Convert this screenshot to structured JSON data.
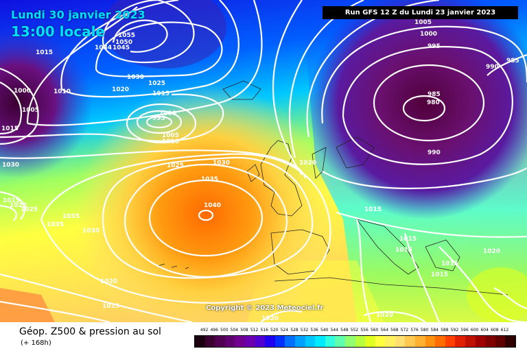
{
  "header": {
    "date_line": "Lundi 30 janvier 2023",
    "time_line": "13:00 locale",
    "run_info": "Run GFS 12 Z du Lundi 23 janvier 2023"
  },
  "copyright": "Copyright © 2023 Meteociel.fr",
  "footer": {
    "title": "Géop. Z500 & pression au sol",
    "subtitle": "(+ 168h)"
  },
  "legend": {
    "labels": [
      "492",
      "496",
      "500",
      "504",
      "508",
      "512",
      "516",
      "520",
      "524",
      "528",
      "532",
      "536",
      "540",
      "544",
      "548",
      "552",
      "556",
      "560",
      "564",
      "568",
      "572",
      "576",
      "580",
      "584",
      "588",
      "592",
      "596",
      "600",
      "604",
      "608",
      "612"
    ],
    "colors": [
      "#1a0010",
      "#3a0030",
      "#500050",
      "#600070",
      "#700090",
      "#6a00b0",
      "#5000d0",
      "#2000f0",
      "#0030ff",
      "#0070ff",
      "#00a0ff",
      "#00c8ff",
      "#00eaff",
      "#30ffe0",
      "#60ffb0",
      "#90ff70",
      "#b8ff40",
      "#e0ff20",
      "#ffff40",
      "#fff060",
      "#ffe070",
      "#ffc850",
      "#ffb030",
      "#ff9010",
      "#ff6c00",
      "#ff4000",
      "#e02000",
      "#c01000",
      "#a00000",
      "#800000",
      "#600000",
      "#300000"
    ]
  },
  "isobars": {
    "labels": [
      "1055",
      "1050",
      "1045",
      "1034",
      "1015",
      "1030",
      "1025",
      "1020",
      "1015",
      "1010",
      "1000",
      "1005",
      "1015",
      "1030",
      "1015",
      "1020",
      "1025",
      "995",
      "1000",
      "1005",
      "1010",
      "1025",
      "1030",
      "1035",
      "1040",
      "1035",
      "1035",
      "1030",
      "1020",
      "1015",
      "1020",
      "1005",
      "1000",
      "995",
      "990",
      "985",
      "985",
      "980",
      "990",
      "1020",
      "1015",
      "1015",
      "1015",
      "1015",
      "1015",
      "1020",
      "1020"
    ]
  }
}
